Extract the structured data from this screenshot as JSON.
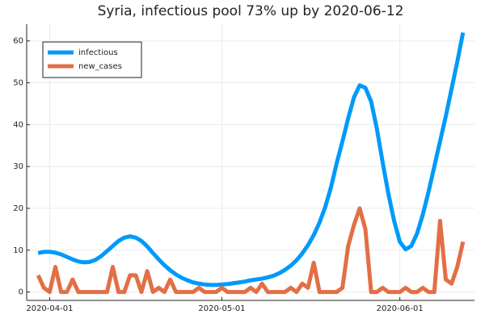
{
  "chart_data": {
    "type": "line",
    "title": "Syria, infectious pool 73% up by 2020-06-12",
    "x": [
      "2020-03-30",
      "2020-03-31",
      "2020-04-01",
      "2020-04-02",
      "2020-04-03",
      "2020-04-04",
      "2020-04-05",
      "2020-04-06",
      "2020-04-07",
      "2020-04-08",
      "2020-04-09",
      "2020-04-10",
      "2020-04-11",
      "2020-04-12",
      "2020-04-13",
      "2020-04-14",
      "2020-04-15",
      "2020-04-16",
      "2020-04-17",
      "2020-04-18",
      "2020-04-19",
      "2020-04-20",
      "2020-04-21",
      "2020-04-22",
      "2020-04-23",
      "2020-04-24",
      "2020-04-25",
      "2020-04-26",
      "2020-04-27",
      "2020-04-28",
      "2020-04-29",
      "2020-04-30",
      "2020-05-01",
      "2020-05-02",
      "2020-05-03",
      "2020-05-04",
      "2020-05-05",
      "2020-05-06",
      "2020-05-07",
      "2020-05-08",
      "2020-05-09",
      "2020-05-10",
      "2020-05-11",
      "2020-05-12",
      "2020-05-13",
      "2020-05-14",
      "2020-05-15",
      "2020-05-16",
      "2020-05-17",
      "2020-05-18",
      "2020-05-19",
      "2020-05-20",
      "2020-05-21",
      "2020-05-22",
      "2020-05-23",
      "2020-05-24",
      "2020-05-25",
      "2020-05-26",
      "2020-05-27",
      "2020-05-28",
      "2020-05-29",
      "2020-05-30",
      "2020-05-31",
      "2020-06-01",
      "2020-06-02",
      "2020-06-03",
      "2020-06-04",
      "2020-06-05",
      "2020-06-06",
      "2020-06-07",
      "2020-06-08",
      "2020-06-09",
      "2020-06-10",
      "2020-06-11",
      "2020-06-12"
    ],
    "series": [
      {
        "name": "infectious",
        "color": "#009af9",
        "values": [
          9.3,
          9.6,
          9.6,
          9.4,
          9.0,
          8.4,
          7.8,
          7.3,
          7.1,
          7.2,
          7.7,
          8.6,
          9.8,
          11.0,
          12.2,
          13.0,
          13.3,
          13.0,
          12.2,
          10.9,
          9.3,
          7.8,
          6.4,
          5.2,
          4.2,
          3.4,
          2.8,
          2.3,
          2.0,
          1.8,
          1.7,
          1.7,
          1.8,
          1.9,
          2.1,
          2.3,
          2.5,
          2.8,
          3.0,
          3.2,
          3.5,
          3.9,
          4.5,
          5.3,
          6.3,
          7.6,
          9.2,
          11.2,
          13.6,
          16.6,
          20.3,
          25.0,
          30.8,
          36.0,
          41.5,
          46.5,
          49.4,
          48.8,
          45.5,
          39,
          31,
          23.5,
          17,
          12,
          10.2,
          11,
          14,
          18.5,
          24,
          30,
          36,
          42,
          48.5,
          55,
          62
        ]
      },
      {
        "name": "new_cases",
        "color": "#e26f46",
        "values": [
          4,
          1,
          0,
          6,
          0,
          0,
          3,
          0,
          0,
          0,
          0,
          0,
          0,
          6,
          0,
          0,
          4,
          4,
          0,
          5,
          0,
          1,
          0,
          3,
          0,
          0,
          0,
          0,
          1,
          0,
          0,
          0,
          1,
          0,
          0,
          0,
          0,
          1,
          0,
          2,
          0,
          0,
          0,
          0,
          1,
          0,
          2,
          1,
          7,
          0,
          0,
          0,
          0,
          1,
          11,
          16,
          20,
          15,
          0,
          0,
          1,
          0,
          0,
          0,
          1,
          0,
          0,
          1,
          0,
          0,
          17,
          3,
          2,
          6,
          12
        ]
      }
    ],
    "xlim": [
      "2020-03-28",
      "2020-06-14"
    ],
    "xticks": [
      "2020-04-01",
      "2020-05-01",
      "2020-06-01"
    ],
    "ylim": [
      -2,
      64
    ],
    "yticks": [
      0,
      10,
      20,
      30,
      40,
      50,
      60
    ],
    "grid": true,
    "legend": "top-left"
  }
}
